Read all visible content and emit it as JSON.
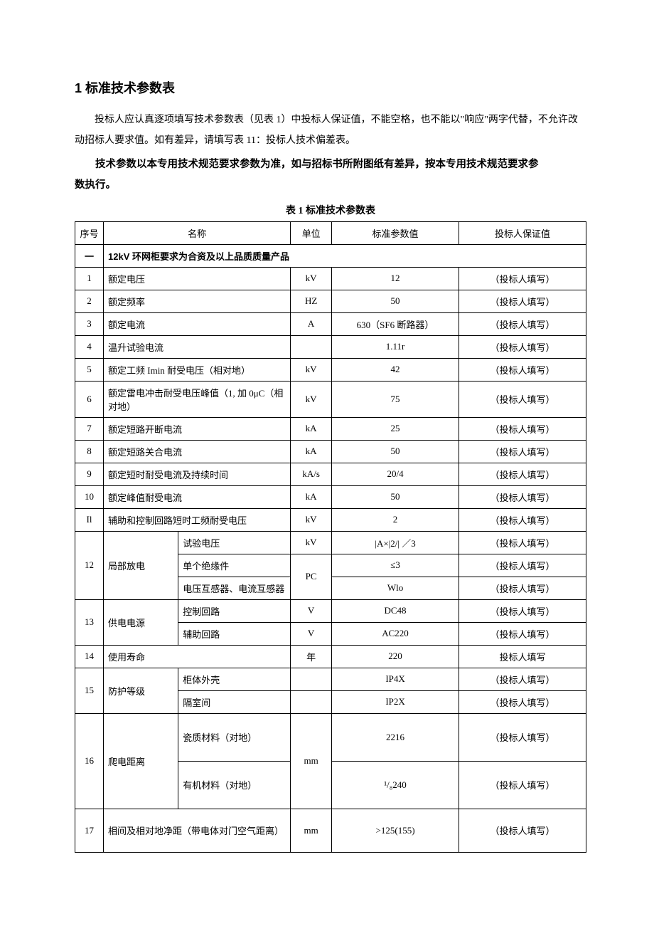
{
  "heading": "1 标准技术参数表",
  "para1": "投标人应认真逐项填写技术参数表（见表 1）中投标人保证值，不能空格，也不能以\"响应\"两字代替，不允许改动招标人要求值。如有差异，请填写表 11：投标人技术偏差表。",
  "para2_line1": "技术参数以本专用技术规范要求参数为准，如与招标书所附图纸有差异，按本专用技术规范要求参",
  "para2_line2": "数执行。",
  "caption": "表 1 标准技术参数表",
  "headers": {
    "seq": "序号",
    "name": "名称",
    "unit": "单位",
    "std": "标准参数值",
    "bid": "投标人保证值"
  },
  "section1": {
    "seq": "一",
    "title": "12kV 环网柜要求为合资及以上品质质量产品"
  },
  "fill": "（投标人填写）",
  "fill_plain": "投标人填写",
  "rows": {
    "r1": {
      "seq": "1",
      "name": "额定电压",
      "unit": "kV",
      "std": "12"
    },
    "r2": {
      "seq": "2",
      "name": "额定频率",
      "unit": "HZ",
      "std": "50"
    },
    "r3": {
      "seq": "3",
      "name": "额定电流",
      "unit": "A",
      "std": "630（SF6 断路器）"
    },
    "r4": {
      "seq": "4",
      "name": "温升试验电流",
      "unit": "",
      "std": "1.11r"
    },
    "r5": {
      "seq": "5",
      "name": "额定工频 Imin 耐受电压（相对地）",
      "unit": "kV",
      "std": "42"
    },
    "r6": {
      "seq": "6",
      "name": "额定雷电冲击耐受电压峰值（1, 加 0μC（相对地）",
      "unit": "kV",
      "std": "75"
    },
    "r7": {
      "seq": "7",
      "name": "额定短路开断电流",
      "unit": "kA",
      "std": "25"
    },
    "r8": {
      "seq": "8",
      "name": "额定短路关合电流",
      "unit": "kA",
      "std": "50"
    },
    "r9": {
      "seq": "9",
      "name": "额定短时耐受电流及持续时间",
      "unit": "kA/s",
      "std": "20/4"
    },
    "r10": {
      "seq": "10",
      "name": "额定峰值耐受电流",
      "unit": "kA",
      "std": "50"
    },
    "r11": {
      "seq": "Il",
      "name": "辅助和控制回路短时工频耐受电压",
      "unit": "kV",
      "std": "2"
    },
    "r12": {
      "seq": "12",
      "name": "局部放电",
      "sub1": {
        "name": "试验电压",
        "unit": "kV",
        "std": "|A×|2/| ／3"
      },
      "sub2": {
        "name": "单个绝缘件",
        "std": "≤3"
      },
      "sub3": {
        "name": "电压互感器、电流互感器",
        "std": "Wlo"
      },
      "unit23": "PC"
    },
    "r13": {
      "seq": "13",
      "name": "供电电源",
      "sub1": {
        "name": "控制回路",
        "unit": "V",
        "std": "DC48"
      },
      "sub2": {
        "name": "辅助回路",
        "unit": "V",
        "std": "AC220"
      }
    },
    "r14": {
      "seq": "14",
      "name": "使用寿命",
      "unit": "年",
      "std": "220"
    },
    "r15": {
      "seq": "15",
      "name": "防护等级",
      "sub1": {
        "name": "柜体外壳",
        "unit": "",
        "std": "IP4X"
      },
      "sub2": {
        "name": "隔室间",
        "unit": "",
        "std": "IP2X"
      }
    },
    "r16": {
      "seq": "16",
      "name": "爬电距离",
      "unit": "mm",
      "sub1": {
        "name": "瓷质材料（对地）",
        "std": "2216"
      },
      "sub2": {
        "name": "有机材料（对地）",
        "std": "¹/₈240"
      }
    },
    "r17": {
      "seq": "17",
      "name": "相间及相对地净距（带电体对门空气距离）",
      "unit": "mm",
      "std": ">125(155)"
    }
  }
}
